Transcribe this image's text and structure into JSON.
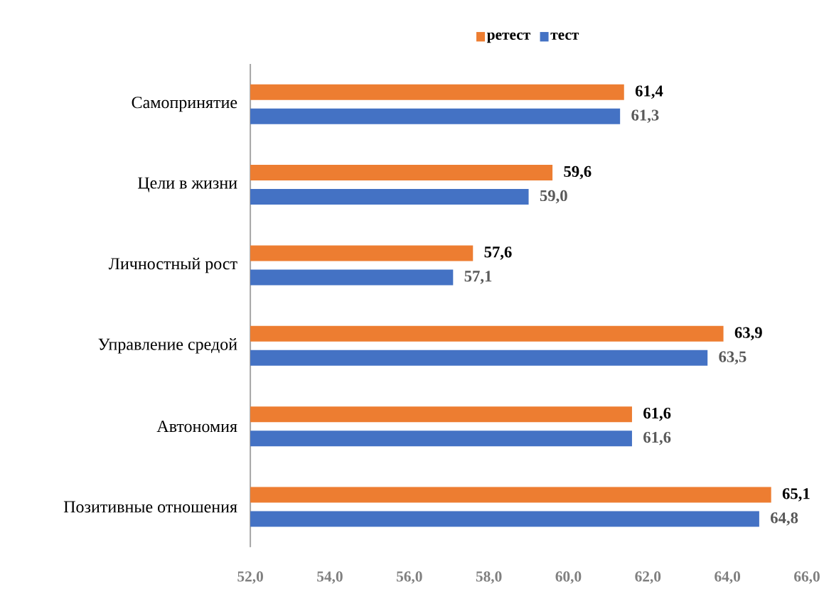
{
  "chart_data": {
    "type": "bar",
    "orientation": "horizontal",
    "categories": [
      "Самопринятие",
      "Цели в жизни",
      "Личностный рост",
      "Управление средой",
      "Автономия",
      "Позитивные отношения"
    ],
    "series": [
      {
        "name": "ретест",
        "color": "#ed7d31",
        "values": [
          61.4,
          59.6,
          57.6,
          63.9,
          61.6,
          65.1
        ],
        "value_labels": [
          "61,4",
          "59,6",
          "57,6",
          "63,9",
          "61,6",
          "65,1"
        ]
      },
      {
        "name": "тест",
        "color": "#4472c4",
        "values": [
          61.3,
          59.0,
          57.1,
          63.5,
          61.6,
          64.8
        ],
        "value_labels": [
          "61,3",
          "59,0",
          "57,1",
          "63,5",
          "61,6",
          "64,8"
        ]
      }
    ],
    "xlim": [
      52,
      66
    ],
    "xticks": [
      {
        "value": 52,
        "label": "52,0"
      },
      {
        "value": 54,
        "label": "54,0"
      },
      {
        "value": 56,
        "label": "56,0"
      },
      {
        "value": 58,
        "label": "58,0"
      },
      {
        "value": 60,
        "label": "60,0"
      },
      {
        "value": 62,
        "label": "62,0"
      },
      {
        "value": 64,
        "label": "64,0"
      },
      {
        "value": 66,
        "label": "66,0"
      }
    ],
    "legend": "top"
  }
}
